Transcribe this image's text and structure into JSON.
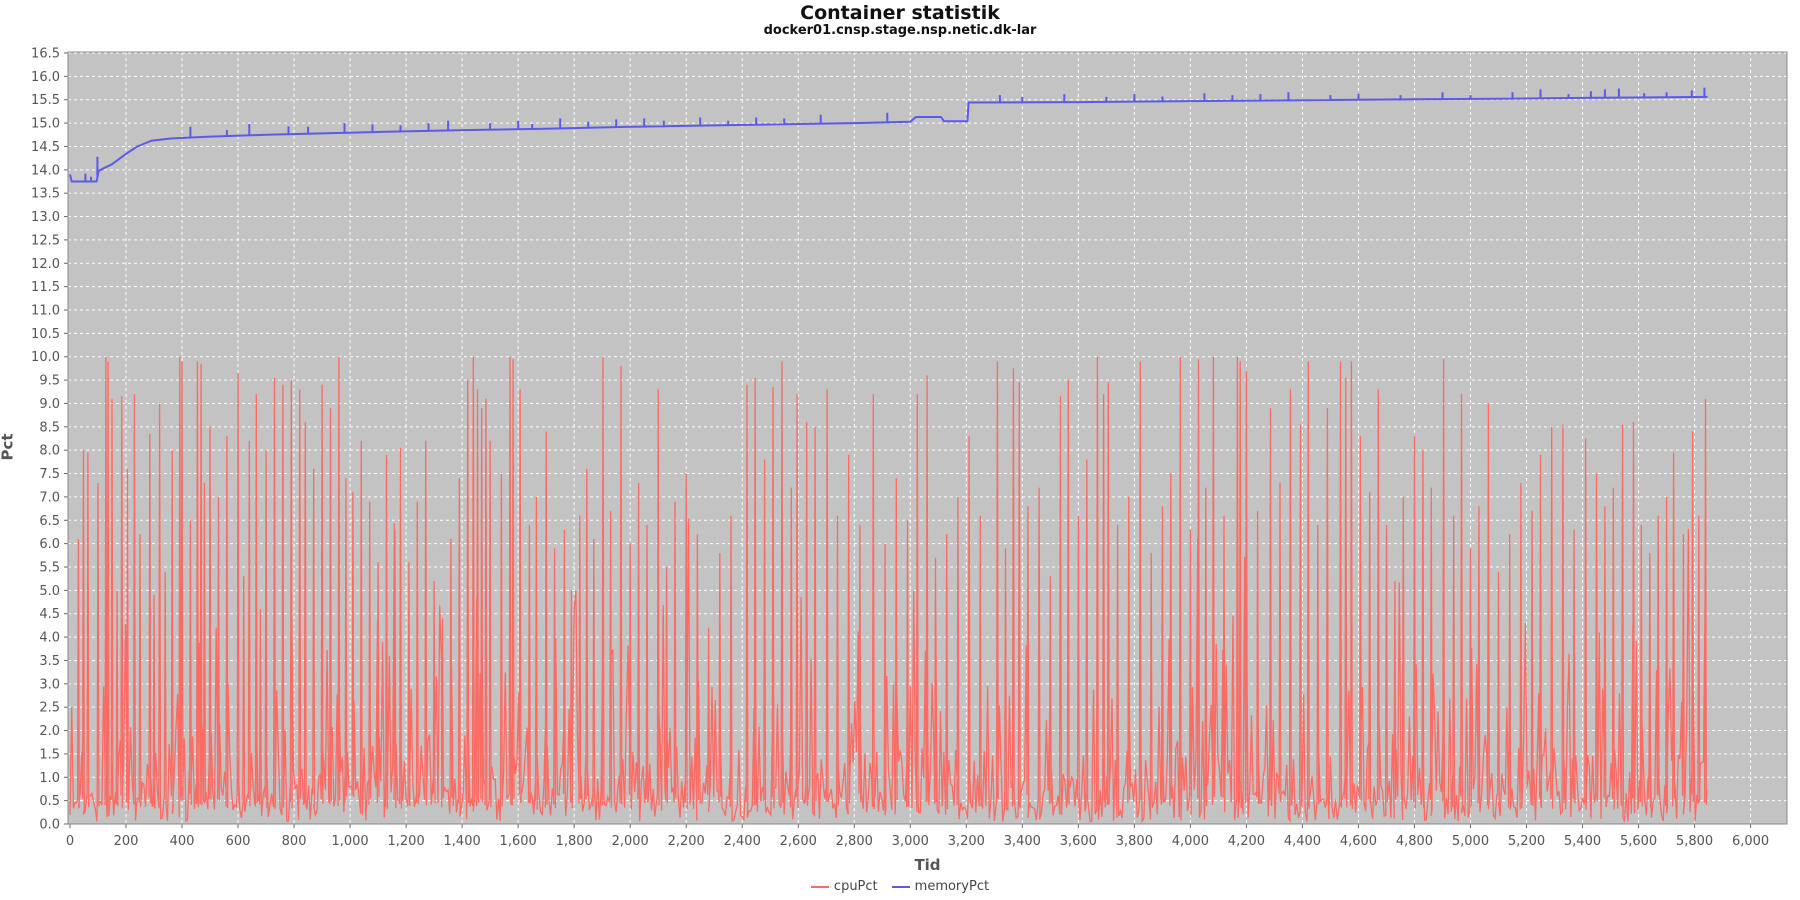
{
  "chart_data": {
    "type": "line",
    "title": "Container statistik",
    "subtitle": "docker01.cnsp.stage.nsp.netic.dk-lar",
    "xlabel": "Tid",
    "ylabel": "Pct",
    "xlim": [
      0,
      6130
    ],
    "ylim": [
      0,
      16.5
    ],
    "x_tick_step": 200,
    "x_tick_max": 6000,
    "y_tick_step": 0.5,
    "grid": true,
    "legend_position": "bottom",
    "colors": {
      "plot_background": "#c3c3c3",
      "grid": "#ffffff",
      "border": "#888888",
      "tick": "#666666",
      "axis_text": "#555555",
      "cpu": "#fb6a63",
      "memory": "#5b5be8"
    },
    "series": [
      {
        "name": "cpuPct",
        "x_end": 5846,
        "noise": {
          "seed": 1337,
          "step": 6,
          "levels": [
            [
              0.55,
              0.05,
              0.8
            ],
            [
              0.8,
              0.8,
              1.6
            ],
            [
              0.92,
              1.6,
              3.0
            ],
            [
              0.98,
              3.0,
              5.0
            ],
            [
              1.0,
              5.0,
              6.8
            ]
          ]
        },
        "spikes": [
          [
            30,
            6.1
          ],
          [
            48,
            8.0
          ],
          [
            64,
            7.95
          ],
          [
            100,
            7.3
          ],
          [
            128,
            10.0
          ],
          [
            136,
            9.9
          ],
          [
            150,
            9.1
          ],
          [
            168,
            5.0
          ],
          [
            185,
            9.15
          ],
          [
            205,
            7.6
          ],
          [
            230,
            9.2
          ],
          [
            250,
            6.2
          ],
          [
            285,
            8.35
          ],
          [
            300,
            4.9
          ],
          [
            320,
            9.0
          ],
          [
            340,
            5.4
          ],
          [
            365,
            8.0
          ],
          [
            392,
            10.0
          ],
          [
            400,
            9.9
          ],
          [
            430,
            6.5
          ],
          [
            455,
            9.9
          ],
          [
            468,
            9.85
          ],
          [
            480,
            7.3
          ],
          [
            500,
            8.5
          ],
          [
            530,
            7.0
          ],
          [
            560,
            8.3
          ],
          [
            600,
            9.65
          ],
          [
            620,
            5.3
          ],
          [
            640,
            8.2
          ],
          [
            665,
            9.2
          ],
          [
            680,
            4.6
          ],
          [
            700,
            8.0
          ],
          [
            730,
            9.55
          ],
          [
            760,
            9.4
          ],
          [
            790,
            9.5
          ],
          [
            820,
            9.3
          ],
          [
            840,
            8.6
          ],
          [
            870,
            7.6
          ],
          [
            900,
            9.4
          ],
          [
            930,
            8.9
          ],
          [
            960,
            10.0
          ],
          [
            985,
            7.4
          ],
          [
            1010,
            7.1
          ],
          [
            1040,
            8.2
          ],
          [
            1070,
            6.9
          ],
          [
            1100,
            5.6
          ],
          [
            1130,
            7.9
          ],
          [
            1160,
            6.3
          ],
          [
            1180,
            8.05
          ],
          [
            1210,
            5.6
          ],
          [
            1240,
            6.9
          ],
          [
            1270,
            8.2
          ],
          [
            1300,
            5.2
          ],
          [
            1330,
            4.4
          ],
          [
            1360,
            6.1
          ],
          [
            1390,
            7.4
          ],
          [
            1420,
            9.5
          ],
          [
            1440,
            10.0
          ],
          [
            1455,
            9.3
          ],
          [
            1470,
            8.9
          ],
          [
            1485,
            9.1
          ],
          [
            1500,
            8.2
          ],
          [
            1540,
            7.5
          ],
          [
            1571,
            10.0
          ],
          [
            1582,
            9.95
          ],
          [
            1607,
            9.3
          ],
          [
            1640,
            6.4
          ],
          [
            1665,
            7.0
          ],
          [
            1700,
            8.4
          ],
          [
            1730,
            5.9
          ],
          [
            1765,
            6.3
          ],
          [
            1790,
            5.0
          ],
          [
            1820,
            6.6
          ],
          [
            1845,
            7.6
          ],
          [
            1870,
            6.1
          ],
          [
            1903,
            10.0
          ],
          [
            1930,
            6.7
          ],
          [
            1967,
            9.8
          ],
          [
            2000,
            6.0
          ],
          [
            2030,
            7.3
          ],
          [
            2060,
            6.4
          ],
          [
            2100,
            9.3
          ],
          [
            2130,
            5.5
          ],
          [
            2160,
            6.9
          ],
          [
            2200,
            7.5
          ],
          [
            2240,
            6.2
          ],
          [
            2280,
            4.2
          ],
          [
            2320,
            5.8
          ],
          [
            2360,
            6.6
          ],
          [
            2417,
            9.4
          ],
          [
            2446,
            9.55
          ],
          [
            2480,
            7.8
          ],
          [
            2510,
            9.35
          ],
          [
            2542,
            9.9
          ],
          [
            2575,
            7.2
          ],
          [
            2596,
            9.2
          ],
          [
            2630,
            8.6
          ],
          [
            2660,
            8.5
          ],
          [
            2703,
            9.3
          ],
          [
            2740,
            6.6
          ],
          [
            2780,
            7.9
          ],
          [
            2820,
            6.4
          ],
          [
            2868,
            9.2
          ],
          [
            2910,
            6.0
          ],
          [
            2950,
            7.4
          ],
          [
            2990,
            6.5
          ],
          [
            3025,
            9.2
          ],
          [
            3060,
            9.6
          ],
          [
            3090,
            5.7
          ],
          [
            3130,
            6.2
          ],
          [
            3170,
            7.0
          ],
          [
            3210,
            8.3
          ],
          [
            3250,
            6.6
          ],
          [
            3311,
            9.9
          ],
          [
            3340,
            5.9
          ],
          [
            3368,
            9.75
          ],
          [
            3389,
            9.45
          ],
          [
            3420,
            6.8
          ],
          [
            3460,
            7.2
          ],
          [
            3500,
            5.3
          ],
          [
            3536,
            9.15
          ],
          [
            3564,
            9.5
          ],
          [
            3600,
            6.6
          ],
          [
            3630,
            7.8
          ],
          [
            3668,
            10.0
          ],
          [
            3690,
            9.2
          ],
          [
            3707,
            9.45
          ],
          [
            3740,
            6.4
          ],
          [
            3780,
            7.0
          ],
          [
            3821,
            9.9
          ],
          [
            3860,
            5.8
          ],
          [
            3900,
            6.8
          ],
          [
            3930,
            7.5
          ],
          [
            3964,
            10.0
          ],
          [
            4000,
            6.3
          ],
          [
            4029,
            9.95
          ],
          [
            4055,
            7.2
          ],
          [
            4082,
            10.0
          ],
          [
            4120,
            6.6
          ],
          [
            4168,
            10.0
          ],
          [
            4178,
            9.9
          ],
          [
            4200,
            9.7
          ],
          [
            4240,
            6.7
          ],
          [
            4286,
            8.9
          ],
          [
            4320,
            7.3
          ],
          [
            4357,
            9.3
          ],
          [
            4393,
            8.55
          ],
          [
            4421,
            9.9
          ],
          [
            4455,
            6.4
          ],
          [
            4489,
            8.9
          ],
          [
            4536,
            9.9
          ],
          [
            4555,
            9.55
          ],
          [
            4575,
            9.9
          ],
          [
            4607,
            8.3
          ],
          [
            4640,
            7.1
          ],
          [
            4671,
            9.3
          ],
          [
            4700,
            6.4
          ],
          [
            4730,
            5.2
          ],
          [
            4760,
            7.0
          ],
          [
            4800,
            8.3
          ],
          [
            4830,
            8.0
          ],
          [
            4860,
            7.2
          ],
          [
            4904,
            9.95
          ],
          [
            4940,
            6.6
          ],
          [
            4968,
            9.2
          ],
          [
            5000,
            5.9
          ],
          [
            5030,
            6.8
          ],
          [
            5064,
            9.0
          ],
          [
            5100,
            5.4
          ],
          [
            5140,
            6.2
          ],
          [
            5180,
            7.3
          ],
          [
            5220,
            6.7
          ],
          [
            5250,
            7.9
          ],
          [
            5290,
            8.5
          ],
          [
            5330,
            8.55
          ],
          [
            5370,
            6.3
          ],
          [
            5411,
            8.25
          ],
          [
            5450,
            7.5
          ],
          [
            5480,
            6.8
          ],
          [
            5510,
            7.2
          ],
          [
            5543,
            8.55
          ],
          [
            5582,
            8.6
          ],
          [
            5610,
            6.4
          ],
          [
            5640,
            5.8
          ],
          [
            5670,
            6.6
          ],
          [
            5700,
            7.0
          ],
          [
            5725,
            7.95
          ],
          [
            5760,
            6.2
          ],
          [
            5793,
            8.4
          ],
          [
            5815,
            6.6
          ],
          [
            5839,
            9.1
          ]
        ]
      },
      {
        "name": "memoryPct",
        "x_end": 5846,
        "points": [
          [
            0,
            13.9
          ],
          [
            6,
            13.75
          ],
          [
            95,
            13.75
          ],
          [
            102,
            13.98
          ],
          [
            150,
            14.12
          ],
          [
            200,
            14.34
          ],
          [
            240,
            14.5
          ],
          [
            290,
            14.62
          ],
          [
            360,
            14.67
          ],
          [
            500,
            14.71
          ],
          [
            700,
            14.75
          ],
          [
            900,
            14.78
          ],
          [
            1100,
            14.81
          ],
          [
            1400,
            14.85
          ],
          [
            1700,
            14.88
          ],
          [
            2000,
            14.92
          ],
          [
            2300,
            14.95
          ],
          [
            2600,
            14.98
          ],
          [
            2800,
            15.0
          ],
          [
            3000,
            15.03
          ],
          [
            3020,
            15.13
          ],
          [
            3110,
            15.13
          ],
          [
            3120,
            15.04
          ],
          [
            3204,
            15.04
          ],
          [
            3208,
            15.44
          ],
          [
            3600,
            15.45
          ],
          [
            4000,
            15.47
          ],
          [
            4400,
            15.49
          ],
          [
            4800,
            15.51
          ],
          [
            5100,
            15.52
          ],
          [
            5400,
            15.54
          ],
          [
            5846,
            15.56
          ]
        ],
        "tick_spikes": [
          [
            55,
            13.92
          ],
          [
            75,
            13.85
          ],
          [
            98,
            14.28
          ],
          [
            430,
            14.92
          ],
          [
            560,
            14.85
          ],
          [
            640,
            14.98
          ],
          [
            780,
            14.93
          ],
          [
            850,
            14.92
          ],
          [
            980,
            15.0
          ],
          [
            1080,
            14.97
          ],
          [
            1180,
            14.95
          ],
          [
            1280,
            15.0
          ],
          [
            1350,
            15.05
          ],
          [
            1500,
            15.0
          ],
          [
            1600,
            15.05
          ],
          [
            1650,
            14.98
          ],
          [
            1750,
            15.1
          ],
          [
            1850,
            15.03
          ],
          [
            1950,
            15.08
          ],
          [
            2050,
            15.1
          ],
          [
            2120,
            15.05
          ],
          [
            2250,
            15.12
          ],
          [
            2350,
            15.05
          ],
          [
            2450,
            15.12
          ],
          [
            2550,
            15.1
          ],
          [
            2680,
            15.18
          ],
          [
            2918,
            15.22
          ],
          [
            3320,
            15.6
          ],
          [
            3400,
            15.56
          ],
          [
            3550,
            15.62
          ],
          [
            3700,
            15.56
          ],
          [
            3800,
            15.62
          ],
          [
            3900,
            15.57
          ],
          [
            4050,
            15.64
          ],
          [
            4150,
            15.6
          ],
          [
            4250,
            15.62
          ],
          [
            4350,
            15.66
          ],
          [
            4500,
            15.6
          ],
          [
            4600,
            15.63
          ],
          [
            4750,
            15.6
          ],
          [
            4900,
            15.66
          ],
          [
            5000,
            15.6
          ],
          [
            5150,
            15.66
          ],
          [
            5250,
            15.72
          ],
          [
            5350,
            15.62
          ],
          [
            5430,
            15.68
          ],
          [
            5480,
            15.72
          ],
          [
            5530,
            15.74
          ],
          [
            5620,
            15.64
          ],
          [
            5700,
            15.66
          ],
          [
            5790,
            15.7
          ],
          [
            5835,
            15.76
          ]
        ]
      }
    ],
    "legend": [
      {
        "label": "cpuPct",
        "color": "#fb6a63"
      },
      {
        "label": "memoryPct",
        "color": "#5b5be8"
      }
    ]
  }
}
